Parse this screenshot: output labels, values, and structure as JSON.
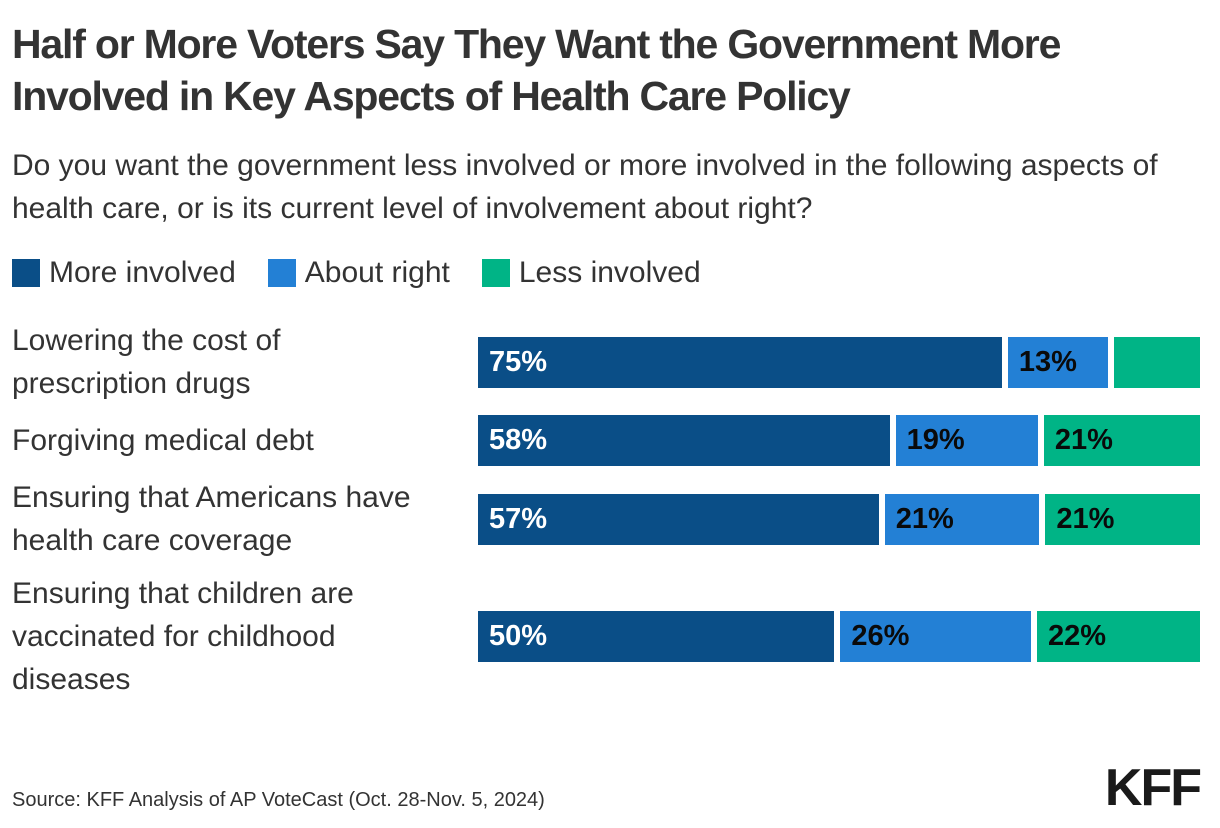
{
  "title": "Half or More Voters Say They Want the Government More Involved in Key Aspects of Health Care Policy",
  "subtitle": "Do you want the government less involved or more involved in the following aspects of health care, or is its current level of involvement about right?",
  "colors": {
    "more_involved": "#0a4e87",
    "about_right": "#2380d5",
    "less_involved": "#00b486",
    "label_on_dark": "#ffffff",
    "label_on_light": "#0a0a0a"
  },
  "legend": {
    "items": [
      {
        "label": "More involved",
        "color": "#0a4e87"
      },
      {
        "label": "About right",
        "color": "#2380d5"
      },
      {
        "label": "Less involved",
        "color": "#00b486"
      }
    ]
  },
  "chart_data": {
    "type": "bar",
    "orientation": "horizontal-stacked",
    "title": "Half or More Voters Say They Want the Government More Involved in Key Aspects of Health Care Policy",
    "categories": [
      "Lowering the cost of prescription drugs",
      "Forgiving medical debt",
      "Ensuring that Americans have health care coverage",
      "Ensuring that children are vaccinated for childhood diseases"
    ],
    "series": [
      {
        "name": "More involved",
        "color": "#0a4e87",
        "values": [
          75,
          58,
          57,
          50
        ]
      },
      {
        "name": "About right",
        "color": "#2380d5",
        "values": [
          13,
          19,
          21,
          26
        ]
      },
      {
        "name": "Less involved",
        "color": "#00b486",
        "values": [
          11,
          21,
          21,
          22
        ]
      }
    ],
    "value_format": "percent",
    "legend_position": "top",
    "grid": false,
    "rows": [
      {
        "label": "Lowering the cost of\nprescription drugs",
        "segments": [
          {
            "value": 75,
            "text": "75%",
            "color": "#0a4e87",
            "text_color": "#ffffff"
          },
          {
            "value": 13,
            "text": "13%",
            "color": "#2380d5",
            "text_color": "#0a0a0a"
          },
          {
            "value": 11,
            "text": "",
            "color": "#00b486",
            "text_color": "#0a0a0a"
          }
        ]
      },
      {
        "label": "Forgiving medical debt",
        "segments": [
          {
            "value": 58,
            "text": "58%",
            "color": "#0a4e87",
            "text_color": "#ffffff"
          },
          {
            "value": 19,
            "text": "19%",
            "color": "#2380d5",
            "text_color": "#0a0a0a"
          },
          {
            "value": 21,
            "text": "21%",
            "color": "#00b486",
            "text_color": "#0a0a0a"
          }
        ]
      },
      {
        "label": "Ensuring that Americans have\nhealth care coverage",
        "segments": [
          {
            "value": 57,
            "text": "57%",
            "color": "#0a4e87",
            "text_color": "#ffffff"
          },
          {
            "value": 21,
            "text": "21%",
            "color": "#2380d5",
            "text_color": "#0a0a0a"
          },
          {
            "value": 21,
            "text": "21%",
            "color": "#00b486",
            "text_color": "#0a0a0a"
          }
        ]
      },
      {
        "label": "Ensuring that children are\nvaccinated for childhood\ndiseases",
        "segments": [
          {
            "value": 50,
            "text": "50%",
            "color": "#0a4e87",
            "text_color": "#ffffff"
          },
          {
            "value": 26,
            "text": "26%",
            "color": "#2380d5",
            "text_color": "#0a0a0a"
          },
          {
            "value": 22,
            "text": "22%",
            "color": "#00b486",
            "text_color": "#0a0a0a"
          }
        ]
      }
    ]
  },
  "footer": {
    "source": "Source: KFF Analysis of AP VoteCast (Oct. 28-Nov. 5, 2024)",
    "logo": "KFF"
  }
}
